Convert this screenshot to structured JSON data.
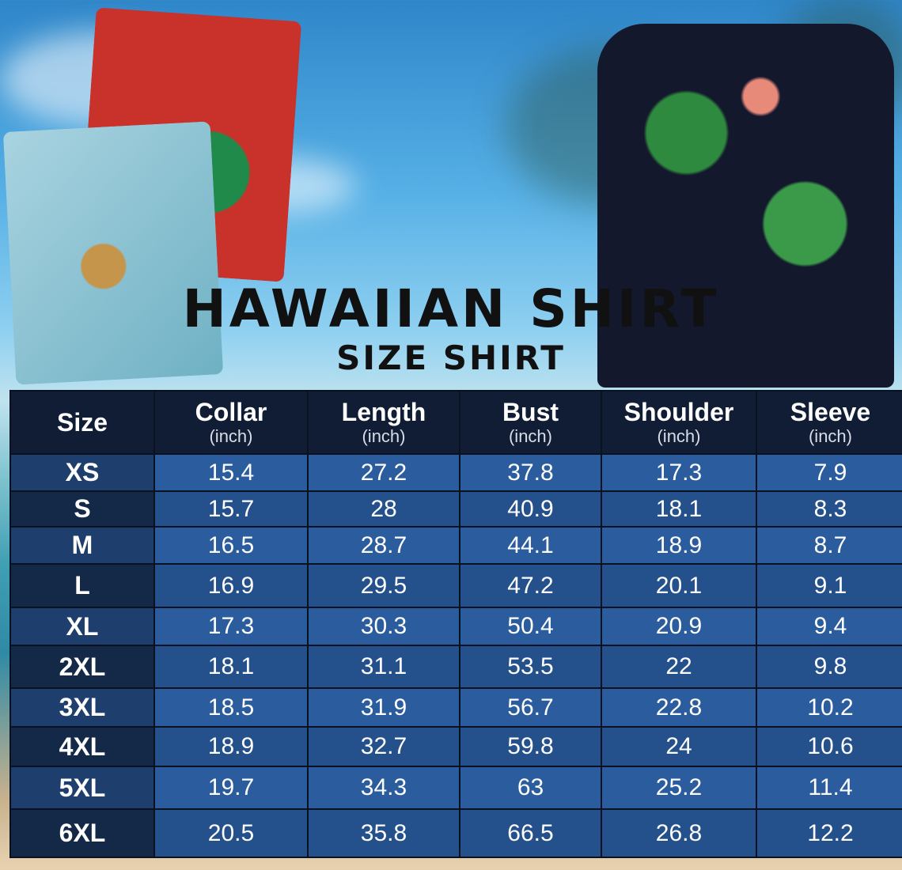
{
  "title": "HAWAIIAN SHIRT",
  "subtitle": "SIZE SHIRT",
  "headers": [
    {
      "label": "Size",
      "unit": ""
    },
    {
      "label": "Collar",
      "unit": "(inch)"
    },
    {
      "label": "Length",
      "unit": "(inch)"
    },
    {
      "label": "Bust",
      "unit": "(inch)"
    },
    {
      "label": "Shoulder",
      "unit": "(inch)"
    },
    {
      "label": "Sleeve",
      "unit": "(inch)"
    }
  ],
  "rows": [
    [
      "XS",
      "15.4",
      "27.2",
      "37.8",
      "17.3",
      "7.9"
    ],
    [
      "S",
      "15.7",
      "28",
      "40.9",
      "18.1",
      "8.3"
    ],
    [
      "M",
      "16.5",
      "28.7",
      "44.1",
      "18.9",
      "8.7"
    ],
    [
      "L",
      "16.9",
      "29.5",
      "47.2",
      "20.1",
      "9.1"
    ],
    [
      "XL",
      "17.3",
      "30.3",
      "50.4",
      "20.9",
      "9.4"
    ],
    [
      "2XL",
      "18.1",
      "31.1",
      "53.5",
      "22",
      "9.8"
    ],
    [
      "3XL",
      "18.5",
      "31.9",
      "56.7",
      "22.8",
      "10.2"
    ],
    [
      "4XL",
      "18.9",
      "32.7",
      "59.8",
      "24",
      "10.6"
    ],
    [
      "5XL",
      "19.7",
      "34.3",
      "63",
      "25.2",
      "11.4"
    ],
    [
      "6XL",
      "20.5",
      "35.8",
      "66.5",
      "26.8",
      "12.2"
    ]
  ],
  "colors": {
    "header": "#111d35",
    "row_light": "#2b5c9e",
    "row_dark": "#24508c"
  }
}
